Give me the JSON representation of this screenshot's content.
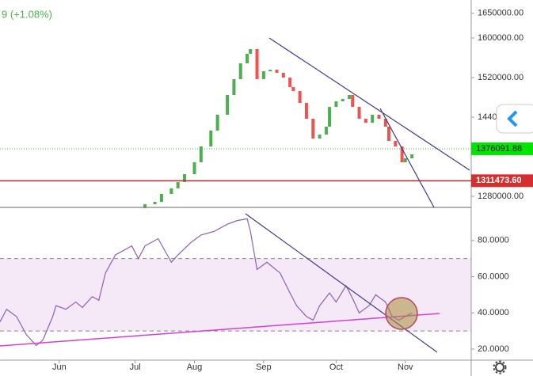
{
  "chart_data": [
    {
      "type": "candlestick",
      "header_text": "9 (+1.08%)",
      "x": [
        44,
        47,
        49,
        52,
        54,
        56,
        59,
        61,
        64,
        66,
        69,
        71,
        73,
        75,
        76,
        78,
        80,
        82,
        84,
        86,
        88,
        89,
        91,
        93,
        95,
        97,
        99,
        100,
        102,
        104,
        106,
        107,
        109,
        111,
        113,
        115,
        117,
        118,
        120,
        122,
        123,
        125
      ],
      "open": [
        1256000,
        1264000,
        1268800,
        1284800,
        1296000,
        1308800,
        1324800,
        1348800,
        1380800,
        1412800,
        1444800,
        1484800,
        1516800,
        1548800,
        1568000,
        1577600,
        1516800,
        1532800,
        1536000,
        1529600,
        1520000,
        1500800,
        1492800,
        1468800,
        1436800,
        1396800,
        1404800,
        1420800,
        1460800,
        1472000,
        1476800,
        1484800,
        1460800,
        1436800,
        1428800,
        1444800,
        1436800,
        1420800,
        1392000,
        1380800,
        1348800,
        1356800
      ],
      "close": [
        1264000,
        1268800,
        1284800,
        1296000,
        1308800,
        1324800,
        1348800,
        1380800,
        1412800,
        1444800,
        1484800,
        1516800,
        1548800,
        1568000,
        1577600,
        1516800,
        1532800,
        1536000,
        1529600,
        1520000,
        1500800,
        1492800,
        1468800,
        1436800,
        1396800,
        1404800,
        1420800,
        1460800,
        1472000,
        1476800,
        1484800,
        1460800,
        1436800,
        1428800,
        1444800,
        1436800,
        1420800,
        1392000,
        1380800,
        1348800,
        1356800,
        1364800
      ],
      "up_color": "#4caf50",
      "down_color": "#ef5350",
      "xlim": [
        0,
        143
      ],
      "ylim": [
        1257600,
        1676800
      ],
      "yticks": [
        {
          "value": 1280000,
          "label": "1280000.00"
        },
        {
          "value": 1440000,
          "label": "1440000.00"
        },
        {
          "value": 1520000,
          "label": "1520000.00"
        },
        {
          "value": 1600000,
          "label": "1600000.00"
        },
        {
          "value": 1650000,
          "label": "1650000.00"
        }
      ],
      "current_price": {
        "value": 1376091.88,
        "label": "1376091.88"
      },
      "horizontal_line": {
        "value": 1311473.6,
        "label": "1311473.60"
      }
    },
    {
      "type": "line",
      "x": [
        0,
        2,
        5,
        8,
        11,
        13,
        16,
        17,
        20,
        23,
        25,
        28,
        30,
        32,
        35,
        36,
        40,
        42,
        44,
        48,
        52,
        54,
        58,
        61,
        65,
        69,
        72,
        75,
        76,
        78,
        81,
        83,
        85,
        88,
        90,
        93,
        95,
        97,
        100,
        102,
        105,
        107,
        109,
        112,
        114,
        117,
        119,
        121,
        123,
        125
      ],
      "values": [
        35,
        42,
        38,
        28,
        22,
        25,
        38,
        44,
        42,
        46,
        43,
        49,
        47,
        62,
        72,
        73,
        77,
        70,
        77,
        81,
        68,
        72,
        79,
        83,
        85,
        89,
        91,
        92,
        85,
        64,
        68,
        65,
        62,
        51,
        44,
        38,
        36,
        44,
        51,
        46,
        55,
        48,
        40,
        44,
        50,
        46,
        38,
        36,
        38,
        40
      ],
      "color": "#8e5fb5",
      "band": [
        30,
        70
      ],
      "xlim": [
        0,
        143
      ],
      "ylim": [
        13.9,
        95.65
      ],
      "yticks": [
        {
          "value": 20,
          "label": "20.0000"
        },
        {
          "value": 40,
          "label": "40.0000"
        },
        {
          "value": 60,
          "label": "60.0000"
        },
        {
          "value": 80,
          "label": "80.0000"
        }
      ],
      "xticks": [
        {
          "value": 18,
          "label": "Jun"
        },
        {
          "value": 41,
          "label": "Jul"
        },
        {
          "value": 59,
          "label": "Aug"
        },
        {
          "value": 80,
          "label": "Sep"
        },
        {
          "value": 102,
          "label": "Oct"
        },
        {
          "value": 123,
          "label": "Nov"
        }
      ]
    }
  ]
}
